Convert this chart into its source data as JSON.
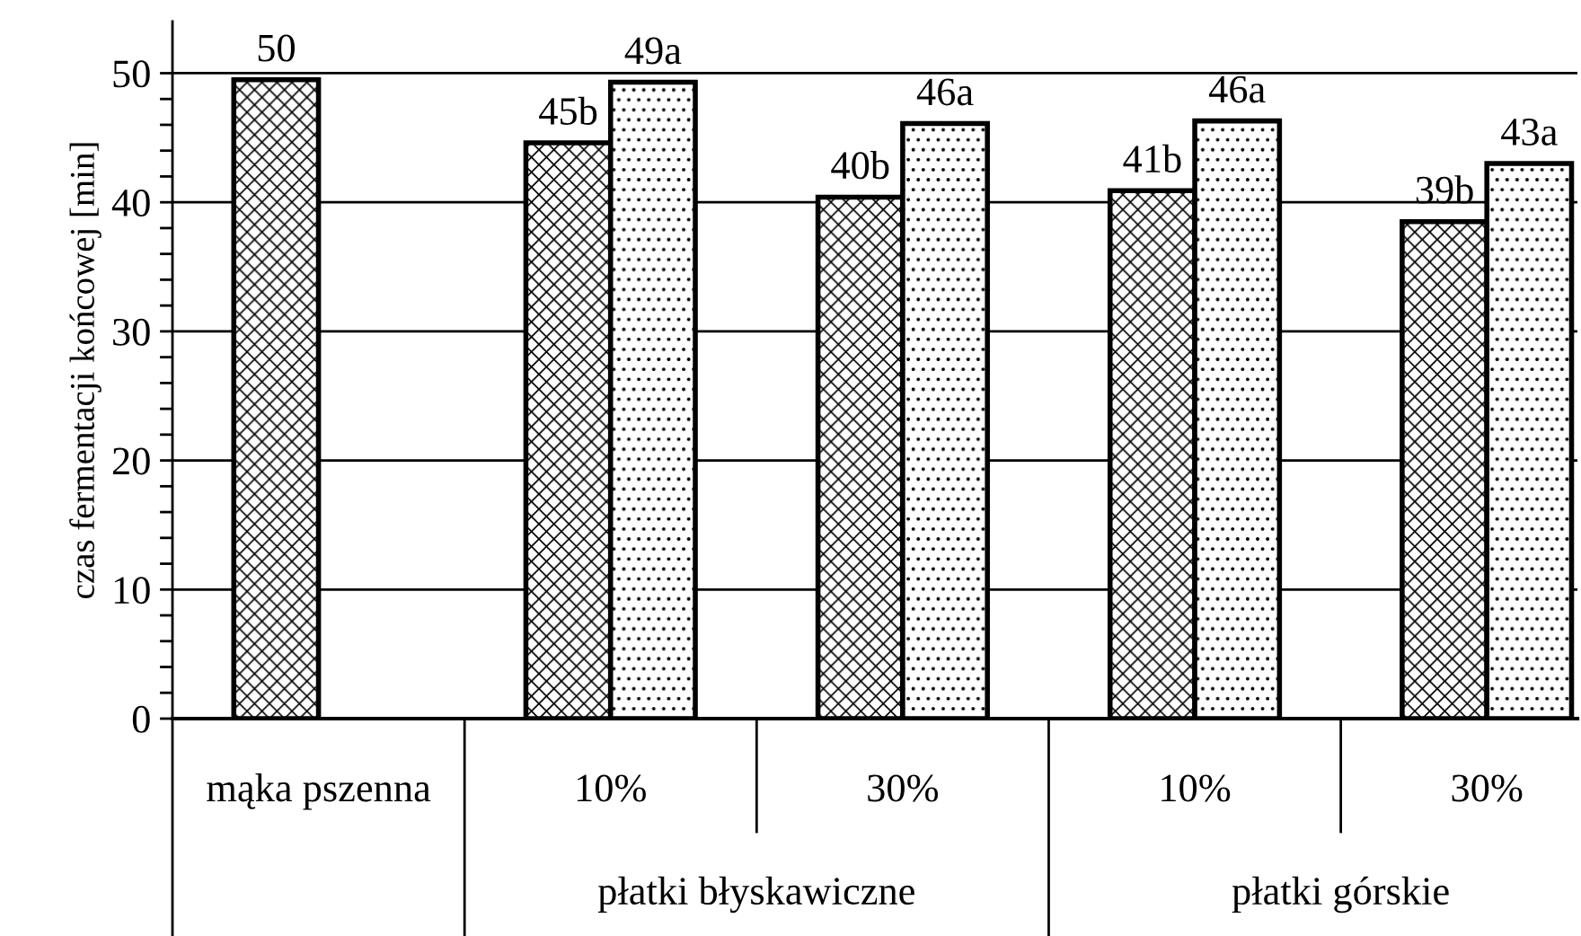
{
  "chart_data": {
    "type": "bar",
    "ylabel": "czas fermentacji końcowej [min]",
    "categories": [
      "mąka pszenna",
      "10%",
      "30%",
      "10%",
      "30%"
    ],
    "series": [
      {
        "color": "#000000",
        "values": [
          49.5,
          44.6,
          40.4,
          40.9,
          38.5
        ],
        "value_labels": [
          "50",
          "45b",
          "40b",
          "41b",
          "39b"
        ]
      },
      {
        "color": "#000000",
        "values": [
          null,
          49.3,
          46.1,
          46.3,
          43.0
        ],
        "value_labels": [
          null,
          "49a",
          "46a",
          "46a",
          "43a"
        ]
      }
    ],
    "ylim": [
      0,
      54
    ],
    "yticks": [
      0,
      {
        "value": 2,
        "label": null
      },
      {
        "value": 4,
        "label": null
      },
      {
        "value": 6,
        "label": null
      },
      {
        "value": 8,
        "label": null
      },
      10,
      {
        "value": 12,
        "label": null
      },
      {
        "value": 14,
        "label": null
      },
      {
        "value": 16,
        "label": null
      },
      {
        "value": 18,
        "label": null
      },
      20,
      {
        "value": 22,
        "label": null
      },
      {
        "value": 24,
        "label": null
      },
      {
        "value": 26,
        "label": null
      },
      {
        "value": 28,
        "label": null
      },
      30,
      {
        "value": 32,
        "label": null
      },
      {
        "value": 34,
        "label": null
      },
      {
        "value": 36,
        "label": null
      },
      {
        "value": 38,
        "label": null
      },
      40,
      {
        "value": 42,
        "label": null
      },
      {
        "value": 44,
        "label": null
      },
      {
        "value": 46,
        "label": null
      },
      {
        "value": 48,
        "label": null
      },
      50
    ],
    "grid": "y",
    "legend": false,
    "annotations": [
      "płatki błyskawiczne",
      "płatki górskie"
    ]
  }
}
